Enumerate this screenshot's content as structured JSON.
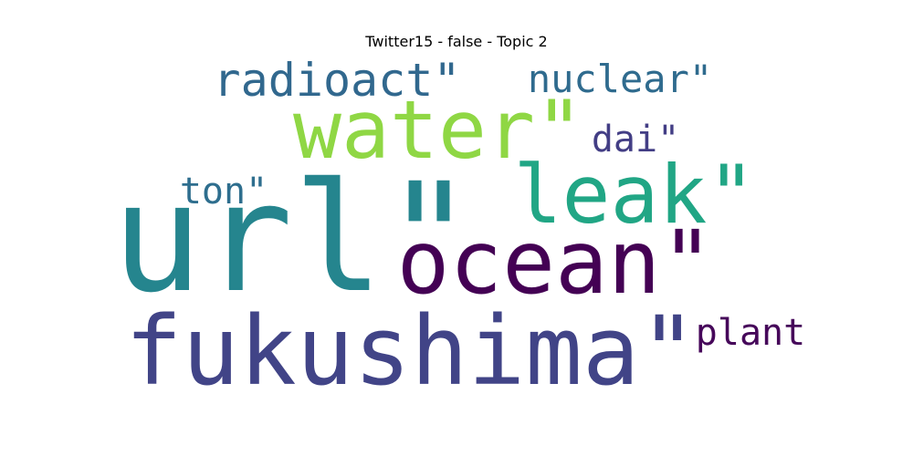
{
  "title": "Twitter15 - false - Topic 2",
  "words": [
    {
      "key": "radioact",
      "text": "radioact\"",
      "color": "#31688e"
    },
    {
      "key": "nuclear",
      "text": "nuclear\"",
      "color": "#2f6b8e"
    },
    {
      "key": "water",
      "text": "water\"",
      "color": "#8fd744"
    },
    {
      "key": "dai",
      "text": "dai\"",
      "color": "#433e85"
    },
    {
      "key": "leak",
      "text": "leak\"",
      "color": "#21a685"
    },
    {
      "key": "ton",
      "text": "ton\"",
      "color": "#2e6e8e"
    },
    {
      "key": "url",
      "text": "url\"",
      "color": "#25858e"
    },
    {
      "key": "ocean",
      "text": "ocean\"",
      "color": "#440154"
    },
    {
      "key": "fukushima",
      "text": "fukushima\"",
      "color": "#414487"
    },
    {
      "key": "plant",
      "text": "plant",
      "color": "#46075a"
    }
  ]
}
